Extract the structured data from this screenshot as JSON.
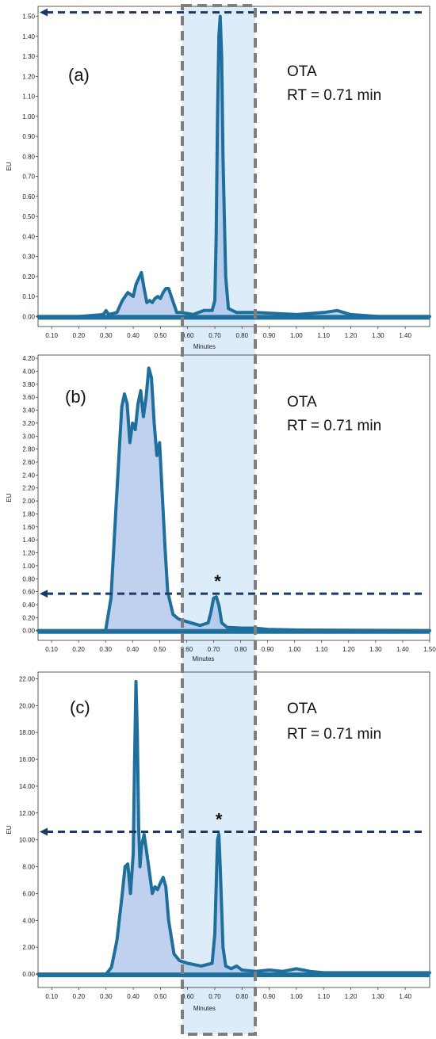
{
  "colors": {
    "trace": "#1f6f9c",
    "fill": "#a9c1ea",
    "highlight_band": "#dcecf8",
    "dashed_box": "#7f7f7f",
    "arrow": "#1a3a66"
  },
  "chart_data": [
    {
      "type": "line",
      "panel_label": "(a)",
      "annotation": {
        "compound": "OTA",
        "retention": "RT = 0.71 min"
      },
      "marker": "*",
      "xlabel": "Minutes",
      "ylabel": "EU",
      "xlim": [
        0.05,
        1.49
      ],
      "ylim": [
        -0.05,
        1.55
      ],
      "x_ticks": [
        "0.10",
        "0.20",
        "0.30",
        "0.40",
        "0.50",
        "0.60",
        "0.70",
        "0.80",
        "0.90",
        "1.00",
        "1.10",
        "1.20",
        "1.30",
        "1.40"
      ],
      "y_ticks": [
        "0.00",
        "0.10",
        "0.20",
        "0.30",
        "0.40",
        "0.50",
        "0.60",
        "0.70",
        "0.80",
        "0.90",
        "1.00",
        "1.10",
        "1.20",
        "1.30",
        "1.40",
        "1.50"
      ],
      "arrow_level": 1.52,
      "series": [
        {
          "x": [
            0.05,
            0.2,
            0.29,
            0.3,
            0.31,
            0.34,
            0.36,
            0.38,
            0.4,
            0.41,
            0.42,
            0.43,
            0.44,
            0.45,
            0.46,
            0.47,
            0.48,
            0.49,
            0.5,
            0.51,
            0.52,
            0.53,
            0.54,
            0.56,
            0.58,
            0.62,
            0.66,
            0.69,
            0.7,
            0.705,
            0.71,
            0.715,
            0.72,
            0.725,
            0.73,
            0.74,
            0.75,
            0.78,
            0.85,
            1.0,
            1.1,
            1.15,
            1.2,
            1.3,
            1.49
          ],
          "y": [
            0.0,
            0.0,
            0.01,
            0.03,
            0.01,
            0.02,
            0.08,
            0.12,
            0.1,
            0.16,
            0.19,
            0.22,
            0.14,
            0.07,
            0.08,
            0.07,
            0.09,
            0.1,
            0.09,
            0.12,
            0.14,
            0.14,
            0.1,
            0.02,
            0.02,
            0.01,
            0.03,
            0.03,
            0.08,
            0.4,
            1.0,
            1.4,
            1.5,
            1.3,
            0.8,
            0.2,
            0.04,
            0.02,
            0.02,
            0.01,
            0.02,
            0.03,
            0.01,
            0.0,
            0.0
          ]
        }
      ]
    },
    {
      "type": "line",
      "panel_label": "(b)",
      "annotation": {
        "compound": "OTA",
        "retention": "RT = 0.71 min"
      },
      "marker": "*",
      "xlabel": "Minutes",
      "ylabel": "EU",
      "xlim": [
        0.05,
        1.5
      ],
      "ylim": [
        -0.15,
        4.25
      ],
      "x_ticks": [
        "0.10",
        "0.20",
        "0.30",
        "0.40",
        "0.50",
        "0.60",
        "0.70",
        "0.80",
        "0.90",
        "1.00",
        "1.10",
        "1.20",
        "1.30",
        "1.40",
        "1.50"
      ],
      "y_ticks": [
        "0.00",
        "0.20",
        "0.40",
        "0.60",
        "0.80",
        "1.00",
        "1.20",
        "1.40",
        "1.60",
        "1.80",
        "2.00",
        "2.20",
        "2.40",
        "2.60",
        "2.80",
        "3.00",
        "3.20",
        "3.40",
        "3.60",
        "3.80",
        "4.00",
        "4.20"
      ],
      "arrow_level": 0.57,
      "series": [
        {
          "x": [
            0.05,
            0.3,
            0.32,
            0.34,
            0.36,
            0.37,
            0.38,
            0.39,
            0.4,
            0.41,
            0.42,
            0.43,
            0.44,
            0.45,
            0.46,
            0.47,
            0.48,
            0.49,
            0.5,
            0.51,
            0.52,
            0.53,
            0.55,
            0.57,
            0.6,
            0.65,
            0.68,
            0.69,
            0.7,
            0.71,
            0.72,
            0.73,
            0.75,
            0.8,
            0.85,
            0.9,
            1.0,
            1.5
          ],
          "y": [
            0.0,
            0.0,
            0.5,
            2.0,
            3.45,
            3.65,
            3.5,
            2.9,
            3.2,
            3.1,
            3.5,
            3.7,
            3.3,
            3.6,
            4.05,
            3.9,
            3.2,
            2.7,
            2.9,
            2.1,
            1.3,
            0.6,
            0.25,
            0.18,
            0.14,
            0.08,
            0.12,
            0.28,
            0.5,
            0.52,
            0.38,
            0.12,
            0.05,
            0.04,
            0.04,
            0.02,
            0.01,
            0.0
          ]
        }
      ]
    },
    {
      "type": "line",
      "panel_label": "(c)",
      "annotation": {
        "compound": "OTA",
        "retention": "RT = 0.71 min"
      },
      "marker": "*",
      "xlabel": "Minutes",
      "ylabel": "EU",
      "xlim": [
        0.05,
        1.49
      ],
      "ylim": [
        -1.0,
        22.5
      ],
      "x_ticks": [
        "0.10",
        "0.20",
        "0.30",
        "0.40",
        "0.50",
        "0.60",
        "0.70",
        "0.80",
        "0.90",
        "1.00",
        "1.10",
        "1.20",
        "1.30",
        "1.40"
      ],
      "y_ticks": [
        "0.00",
        "2.00",
        "4.00",
        "6.00",
        "8.00",
        "10.00",
        "12.00",
        "14.00",
        "16.00",
        "18.00",
        "20.00",
        "22.00"
      ],
      "arrow_level": 10.6,
      "series": [
        {
          "x": [
            0.05,
            0.3,
            0.32,
            0.34,
            0.36,
            0.37,
            0.38,
            0.39,
            0.4,
            0.405,
            0.41,
            0.415,
            0.42,
            0.425,
            0.43,
            0.44,
            0.45,
            0.46,
            0.47,
            0.48,
            0.49,
            0.5,
            0.51,
            0.52,
            0.53,
            0.55,
            0.57,
            0.6,
            0.65,
            0.69,
            0.7,
            0.71,
            0.715,
            0.72,
            0.73,
            0.74,
            0.76,
            0.78,
            0.8,
            0.85,
            0.9,
            0.95,
            1.0,
            1.05,
            1.1,
            1.2,
            1.3,
            1.4,
            1.49
          ],
          "y": [
            0.0,
            0.0,
            0.5,
            2.5,
            6.0,
            8.0,
            8.2,
            6.0,
            9.0,
            16.0,
            21.8,
            18.0,
            11.0,
            8.0,
            9.5,
            10.4,
            9.0,
            7.5,
            6.0,
            6.5,
            6.3,
            6.8,
            7.2,
            6.5,
            4.0,
            1.5,
            1.0,
            0.8,
            0.6,
            0.8,
            3.0,
            10.0,
            10.4,
            8.0,
            2.0,
            0.6,
            0.4,
            0.6,
            0.3,
            0.2,
            0.3,
            0.2,
            0.4,
            0.2,
            0.1,
            0.1,
            0.1,
            0.1,
            0.1
          ]
        }
      ]
    }
  ]
}
